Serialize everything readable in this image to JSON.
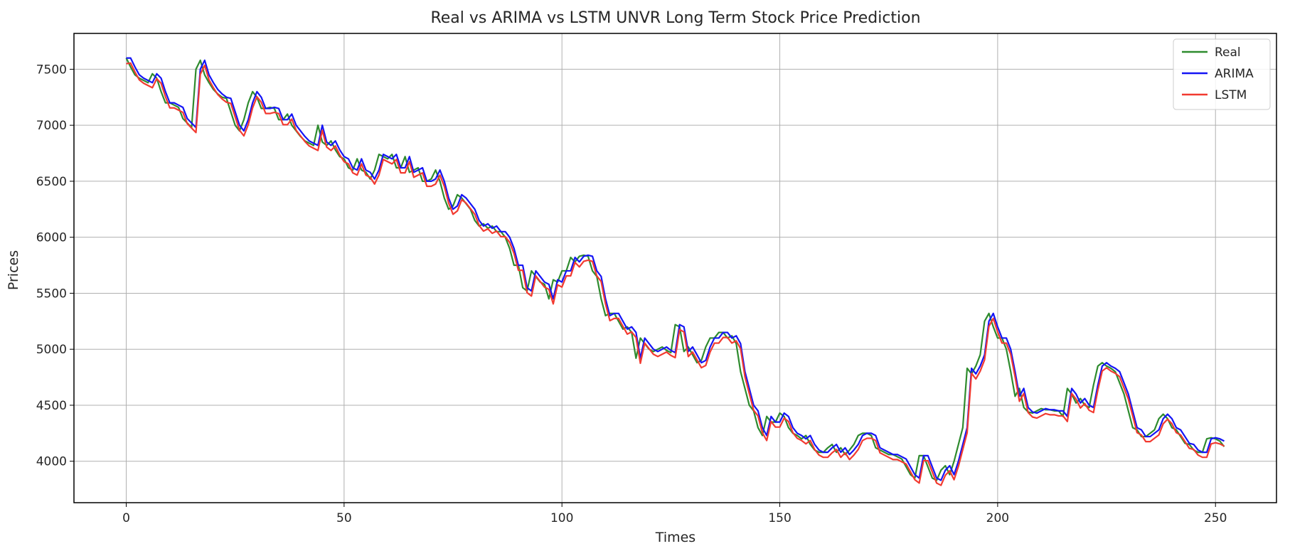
{
  "chart_data": {
    "type": "line",
    "title": "Real vs ARIMA vs LSTM UNVR Long Term Stock Price Prediction",
    "xlabel": "Times",
    "ylabel": "Prices",
    "xlim": [
      -12,
      264
    ],
    "ylim": [
      3630,
      7820
    ],
    "xticks": [
      0,
      50,
      100,
      150,
      200,
      250
    ],
    "yticks": [
      4000,
      4500,
      5000,
      5500,
      6000,
      6500,
      7000,
      7500
    ],
    "grid": true,
    "legend_position": "top-right",
    "series": [
      {
        "name": "Real",
        "color": "#2e8b2e"
      },
      {
        "name": "ARIMA",
        "color": "#1414f5"
      },
      {
        "name": "LSTM",
        "color": "#f23a30"
      }
    ],
    "anchors": [
      [
        0,
        7600
      ],
      [
        1,
        7520
      ],
      [
        2,
        7450
      ],
      [
        3,
        7420
      ],
      [
        4,
        7400
      ],
      [
        5,
        7380
      ],
      [
        6,
        7460
      ],
      [
        7,
        7420
      ],
      [
        8,
        7300
      ],
      [
        9,
        7200
      ],
      [
        10,
        7200
      ],
      [
        11,
        7180
      ],
      [
        12,
        7160
      ],
      [
        13,
        7060
      ],
      [
        14,
        7020
      ],
      [
        15,
        6980
      ],
      [
        16,
        7500
      ],
      [
        17,
        7580
      ],
      [
        18,
        7450
      ],
      [
        19,
        7380
      ],
      [
        20,
        7320
      ],
      [
        21,
        7280
      ],
      [
        22,
        7250
      ],
      [
        23,
        7240
      ],
      [
        24,
        7120
      ],
      [
        25,
        7000
      ],
      [
        26,
        6950
      ],
      [
        27,
        7050
      ],
      [
        28,
        7200
      ],
      [
        29,
        7300
      ],
      [
        30,
        7250
      ],
      [
        31,
        7150
      ],
      [
        32,
        7150
      ],
      [
        33,
        7160
      ],
      [
        34,
        7150
      ],
      [
        35,
        7050
      ],
      [
        36,
        7050
      ],
      [
        37,
        7100
      ],
      [
        38,
        7000
      ],
      [
        39,
        6950
      ],
      [
        40,
        6900
      ],
      [
        41,
        6860
      ],
      [
        42,
        6840
      ],
      [
        43,
        6820
      ],
      [
        44,
        7000
      ],
      [
        45,
        6850
      ],
      [
        46,
        6820
      ],
      [
        47,
        6860
      ],
      [
        48,
        6780
      ],
      [
        49,
        6720
      ],
      [
        50,
        6700
      ],
      [
        51,
        6620
      ],
      [
        52,
        6600
      ],
      [
        53,
        6700
      ],
      [
        54,
        6600
      ],
      [
        55,
        6580
      ],
      [
        56,
        6520
      ],
      [
        57,
        6600
      ],
      [
        58,
        6740
      ],
      [
        59,
        6720
      ],
      [
        60,
        6700
      ],
      [
        61,
        6740
      ],
      [
        62,
        6620
      ],
      [
        63,
        6620
      ],
      [
        64,
        6720
      ],
      [
        65,
        6580
      ],
      [
        66,
        6600
      ],
      [
        67,
        6620
      ],
      [
        68,
        6500
      ],
      [
        69,
        6500
      ],
      [
        70,
        6520
      ],
      [
        71,
        6600
      ],
      [
        72,
        6500
      ],
      [
        73,
        6350
      ],
      [
        74,
        6250
      ],
      [
        75,
        6280
      ],
      [
        76,
        6380
      ],
      [
        77,
        6350
      ],
      [
        78,
        6300
      ],
      [
        79,
        6250
      ],
      [
        80,
        6150
      ],
      [
        81,
        6100
      ],
      [
        82,
        6120
      ],
      [
        83,
        6080
      ],
      [
        84,
        6100
      ],
      [
        85,
        6050
      ],
      [
        86,
        6050
      ],
      [
        87,
        6000
      ],
      [
        88,
        5900
      ],
      [
        89,
        5750
      ],
      [
        90,
        5750
      ],
      [
        91,
        5550
      ],
      [
        92,
        5520
      ],
      [
        93,
        5700
      ],
      [
        94,
        5650
      ],
      [
        95,
        5600
      ],
      [
        96,
        5580
      ],
      [
        97,
        5450
      ],
      [
        98,
        5620
      ],
      [
        99,
        5600
      ],
      [
        100,
        5700
      ],
      [
        101,
        5700
      ],
      [
        102,
        5820
      ],
      [
        103,
        5780
      ],
      [
        104,
        5830
      ],
      [
        105,
        5840
      ],
      [
        106,
        5830
      ],
      [
        107,
        5700
      ],
      [
        108,
        5650
      ],
      [
        109,
        5450
      ],
      [
        110,
        5300
      ],
      [
        111,
        5320
      ],
      [
        112,
        5320
      ],
      [
        113,
        5250
      ],
      [
        114,
        5180
      ],
      [
        115,
        5200
      ],
      [
        116,
        5150
      ],
      [
        117,
        4920
      ],
      [
        118,
        5100
      ],
      [
        119,
        5050
      ],
      [
        120,
        5000
      ],
      [
        121,
        4980
      ],
      [
        122,
        5000
      ],
      [
        123,
        5020
      ],
      [
        124,
        4990
      ],
      [
        125,
        4970
      ],
      [
        126,
        5220
      ],
      [
        127,
        5200
      ],
      [
        128,
        4980
      ],
      [
        129,
        5020
      ],
      [
        130,
        4950
      ],
      [
        131,
        4880
      ],
      [
        132,
        4900
      ],
      [
        133,
        5020
      ],
      [
        134,
        5100
      ],
      [
        135,
        5100
      ],
      [
        136,
        5150
      ],
      [
        137,
        5150
      ],
      [
        138,
        5100
      ],
      [
        139,
        5120
      ],
      [
        140,
        5050
      ],
      [
        141,
        4800
      ],
      [
        142,
        4650
      ],
      [
        143,
        4500
      ],
      [
        144,
        4450
      ],
      [
        145,
        4300
      ],
      [
        146,
        4230
      ],
      [
        147,
        4400
      ],
      [
        148,
        4350
      ],
      [
        149,
        4350
      ],
      [
        150,
        4430
      ],
      [
        151,
        4400
      ],
      [
        152,
        4300
      ],
      [
        153,
        4250
      ],
      [
        154,
        4230
      ],
      [
        155,
        4200
      ],
      [
        156,
        4230
      ],
      [
        157,
        4150
      ],
      [
        158,
        4100
      ],
      [
        159,
        4080
      ],
      [
        160,
        4080
      ],
      [
        161,
        4120
      ],
      [
        162,
        4150
      ],
      [
        163,
        4080
      ],
      [
        164,
        4120
      ],
      [
        165,
        4060
      ],
      [
        166,
        4100
      ],
      [
        167,
        4150
      ],
      [
        168,
        4230
      ],
      [
        169,
        4250
      ],
      [
        170,
        4250
      ],
      [
        171,
        4230
      ],
      [
        172,
        4120
      ],
      [
        173,
        4100
      ],
      [
        174,
        4080
      ],
      [
        175,
        4060
      ],
      [
        176,
        4060
      ],
      [
        177,
        4040
      ],
      [
        178,
        4020
      ],
      [
        179,
        3950
      ],
      [
        180,
        3880
      ],
      [
        181,
        3850
      ],
      [
        182,
        4050
      ],
      [
        183,
        4050
      ],
      [
        184,
        3950
      ],
      [
        185,
        3850
      ],
      [
        186,
        3830
      ],
      [
        187,
        3920
      ],
      [
        188,
        3960
      ],
      [
        189,
        3880
      ],
      [
        190,
        4000
      ],
      [
        191,
        4150
      ],
      [
        192,
        4300
      ],
      [
        193,
        4830
      ],
      [
        194,
        4780
      ],
      [
        195,
        4850
      ],
      [
        196,
        4950
      ],
      [
        197,
        5250
      ],
      [
        198,
        5320
      ],
      [
        199,
        5200
      ],
      [
        200,
        5100
      ],
      [
        201,
        5100
      ],
      [
        202,
        5000
      ],
      [
        203,
        4800
      ],
      [
        204,
        4580
      ],
      [
        205,
        4650
      ],
      [
        206,
        4480
      ],
      [
        207,
        4440
      ],
      [
        208,
        4430
      ],
      [
        209,
        4450
      ],
      [
        210,
        4470
      ],
      [
        211,
        4460
      ],
      [
        212,
        4460
      ],
      [
        213,
        4450
      ],
      [
        214,
        4450
      ],
      [
        215,
        4400
      ],
      [
        216,
        4650
      ],
      [
        217,
        4600
      ],
      [
        218,
        4520
      ],
      [
        219,
        4560
      ],
      [
        220,
        4500
      ],
      [
        221,
        4480
      ],
      [
        222,
        4680
      ],
      [
        223,
        4850
      ],
      [
        224,
        4880
      ],
      [
        225,
        4850
      ],
      [
        226,
        4830
      ],
      [
        227,
        4800
      ],
      [
        228,
        4700
      ],
      [
        229,
        4600
      ],
      [
        230,
        4450
      ],
      [
        231,
        4300
      ],
      [
        232,
        4280
      ],
      [
        233,
        4220
      ],
      [
        234,
        4220
      ],
      [
        235,
        4250
      ],
      [
        236,
        4280
      ],
      [
        237,
        4380
      ],
      [
        238,
        4420
      ],
      [
        239,
        4380
      ],
      [
        240,
        4300
      ],
      [
        241,
        4280
      ],
      [
        242,
        4220
      ],
      [
        243,
        4160
      ],
      [
        244,
        4150
      ],
      [
        245,
        4100
      ],
      [
        246,
        4080
      ],
      [
        247,
        4080
      ],
      [
        248,
        4200
      ],
      [
        249,
        4210
      ],
      [
        250,
        4200
      ],
      [
        251,
        4180
      ],
      [
        252,
        4130
      ]
    ]
  }
}
